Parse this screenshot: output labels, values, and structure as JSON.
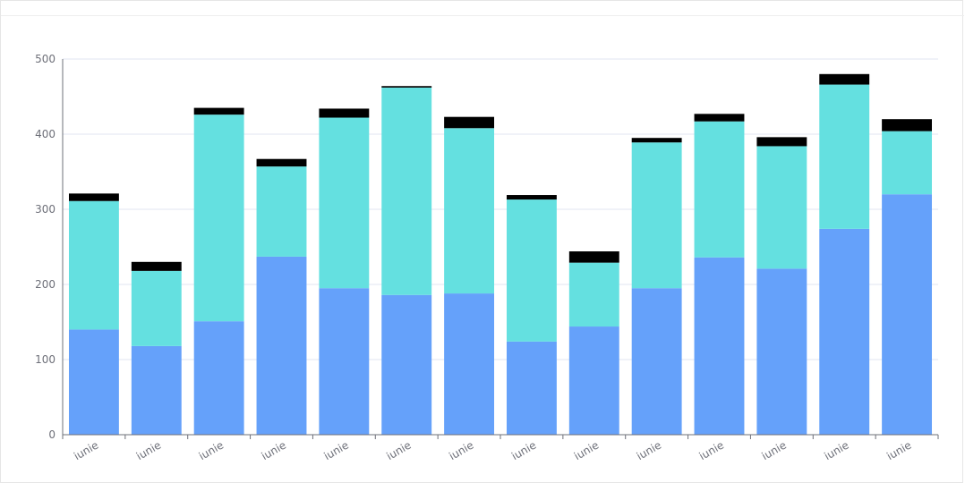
{
  "colors": {
    "series_1": "#65a1fa",
    "series_2": "#64e0e0",
    "series_3": "#000000",
    "axis": "#6e7079",
    "grid": "#e0e6f1"
  },
  "chart_data": {
    "type": "bar",
    "stacked": true,
    "categories": [
      "iunie",
      "iunie",
      "iunie",
      "iunie",
      "iunie",
      "iunie",
      "iunie",
      "iunie",
      "iunie",
      "iunie",
      "iunie",
      "iunie",
      "iunie",
      "iunie"
    ],
    "series": [
      {
        "values": [
          140,
          118,
          151,
          237,
          195,
          186,
          188,
          124,
          144,
          195,
          236,
          221,
          274,
          320
        ]
      },
      {
        "values": [
          171,
          100,
          275,
          120,
          227,
          276,
          220,
          189,
          85,
          194,
          181,
          163,
          192,
          84
        ]
      },
      {
        "values": [
          10,
          12,
          9,
          10,
          12,
          2,
          15,
          6,
          15,
          6,
          10,
          12,
          14,
          16
        ]
      }
    ],
    "ylim": [
      0,
      500
    ],
    "yticks": [
      0,
      100,
      200,
      300,
      400,
      500
    ],
    "grid": true,
    "xlabel": "",
    "ylabel": ""
  }
}
